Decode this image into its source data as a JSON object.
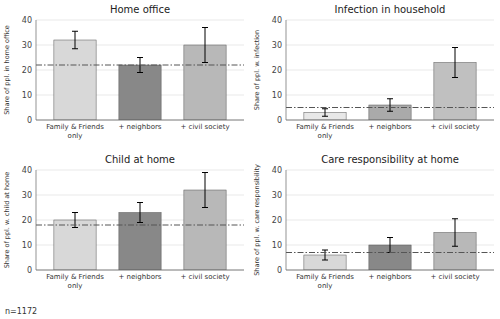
{
  "chart_data": [
    {
      "type": "bar",
      "title": "Home office",
      "ylabel": "Share of ppl. in home office",
      "categories": [
        "Family & Friends\nonly",
        "+ neighbors",
        "+ civil society"
      ],
      "values": [
        32,
        22,
        30
      ],
      "err_up": [
        3.5,
        3.0,
        7.0
      ],
      "err_dn": [
        3.5,
        3.0,
        7.0
      ],
      "avg_line": 22,
      "colors": [
        "#d8d8d8",
        "#888888",
        "#b8b8b8"
      ],
      "ylim": [
        0,
        40
      ],
      "yticks": [
        0,
        10,
        20,
        30,
        40
      ],
      "grid": true
    },
    {
      "type": "bar",
      "title": "Infection in household",
      "ylabel": "Share of ppl. w. infection",
      "categories": [
        "Family & Friends\nonly",
        "+ neighbors",
        "+ civil society"
      ],
      "values": [
        3,
        6,
        23
      ],
      "err_up": [
        1.5,
        2.5,
        6.0
      ],
      "err_dn": [
        1.5,
        2.5,
        6.0
      ],
      "avg_line": 5,
      "colors": [
        "#e8e8e8",
        "#aaaaaa",
        "#c0c0c0"
      ],
      "ylim": [
        0,
        40
      ],
      "yticks": [
        0,
        10,
        20,
        30,
        40
      ],
      "grid": true
    },
    {
      "type": "bar",
      "title": "Child at home",
      "ylabel": "Share of ppl. w. child at home",
      "categories": [
        "Family & Friends\nonly",
        "+ neighbors",
        "+ civil society"
      ],
      "values": [
        20,
        23,
        32
      ],
      "err_up": [
        3.0,
        4.0,
        7.0
      ],
      "err_dn": [
        3.0,
        4.0,
        7.0
      ],
      "avg_line": 18,
      "colors": [
        "#d8d8d8",
        "#888888",
        "#b8b8b8"
      ],
      "ylim": [
        0,
        40
      ],
      "yticks": [
        0,
        10,
        20,
        30,
        40
      ],
      "grid": true
    },
    {
      "type": "bar",
      "title": "Care responsibility at home",
      "ylabel": "Share of ppl. w. care responsibility",
      "categories": [
        "Family & Friends\nonly",
        "+ neighbors",
        "+ civil society"
      ],
      "values": [
        6,
        10,
        15
      ],
      "err_up": [
        2.0,
        3.0,
        5.5
      ],
      "err_dn": [
        2.0,
        3.0,
        5.5
      ],
      "avg_line": 7,
      "colors": [
        "#d8d8d8",
        "#888888",
        "#b8b8b8"
      ],
      "ylim": [
        0,
        40
      ],
      "yticks": [
        0,
        10,
        20,
        30,
        40
      ],
      "grid": true
    }
  ],
  "footnote": "n=1172"
}
